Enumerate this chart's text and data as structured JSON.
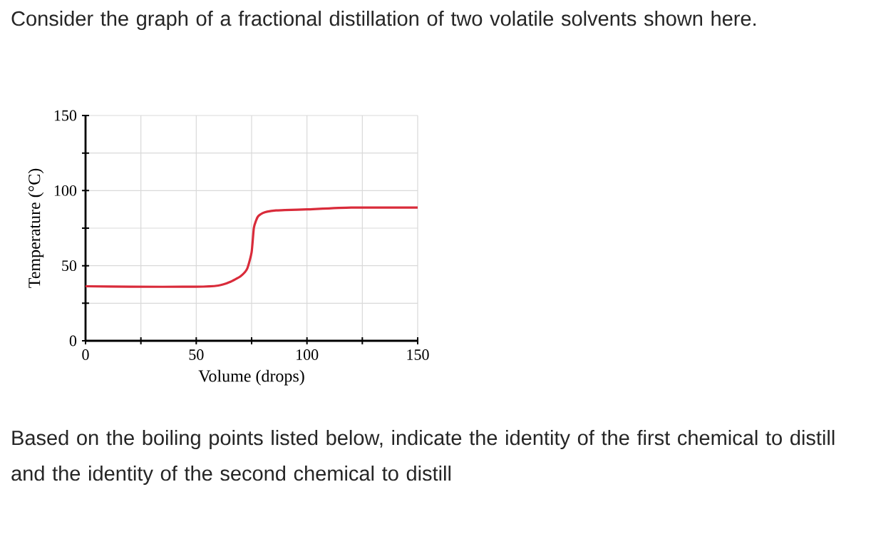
{
  "chart_data": {
    "type": "line",
    "title": "Consider the graph of a fractional distillation of two volatile solvents shown here.",
    "annotations": [
      "Based on the boiling points listed below, indicate the identity of the first chemical to distill and the identity of the second chemical to distill"
    ],
    "xlabel": "Volume (drops)",
    "ylabel": "Temperature (°C)",
    "series": [
      {
        "color": "#d92b3a",
        "x": [
          0,
          20,
          50,
          60,
          65,
          70,
          73,
          75,
          76,
          77,
          78,
          80,
          82,
          86,
          90,
          100,
          120,
          150
        ],
        "values": [
          36.3,
          36,
          36,
          36.8,
          39,
          43,
          48,
          59,
          75,
          80,
          83,
          85,
          86,
          86.8,
          87,
          87.5,
          88.7,
          88.7
        ]
      }
    ],
    "xlim": [
      0,
      150
    ],
    "ylim": [
      0,
      150
    ],
    "xticks": [
      0,
      {
        "value": 25,
        "label": null
      },
      50,
      {
        "value": 75,
        "label": null
      },
      100,
      {
        "value": 125,
        "label": null
      },
      150
    ],
    "yticks": [
      0,
      {
        "value": 25,
        "label": null
      },
      50,
      {
        "value": 75,
        "label": null
      },
      100,
      {
        "value": 125,
        "label": null
      },
      150
    ],
    "grid": true
  }
}
